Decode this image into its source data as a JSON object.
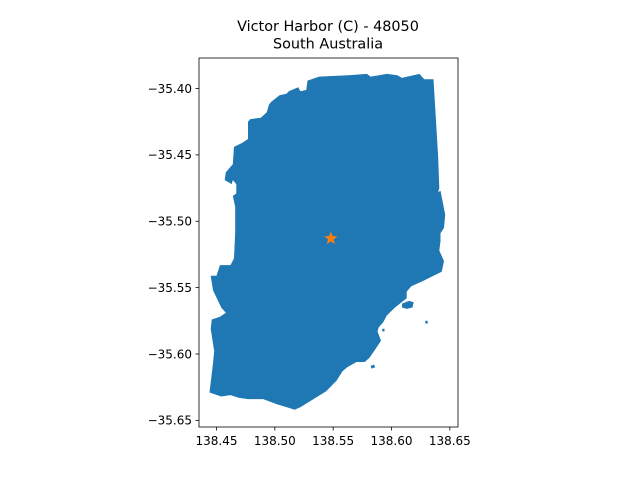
{
  "map": {
    "title_line1": "Victor Harbor (C) - 48050",
    "title_line2": "South Australia",
    "region_color": "#1f77b4",
    "marker_color": "#ff7f0e",
    "marker_symbol": "star",
    "marker": {
      "lon": 138.548,
      "lat": -35.513
    },
    "xlim": [
      138.435,
      138.657
    ],
    "ylim": [
      -35.655,
      -35.377
    ],
    "xticks": [
      {
        "value": 138.45,
        "label": "138.45"
      },
      {
        "value": 138.5,
        "label": "138.50"
      },
      {
        "value": 138.55,
        "label": "138.55"
      },
      {
        "value": 138.6,
        "label": "138.60"
      },
      {
        "value": 138.65,
        "label": "138.65"
      }
    ],
    "yticks": [
      {
        "value": -35.4,
        "label": "−35.40"
      },
      {
        "value": -35.45,
        "label": "−35.45"
      },
      {
        "value": -35.5,
        "label": "−35.50"
      },
      {
        "value": -35.55,
        "label": "−35.55"
      },
      {
        "value": -35.6,
        "label": "−35.60"
      },
      {
        "value": -35.65,
        "label": "−35.65"
      }
    ],
    "boundary": [
      [
        138.538,
        -35.391
      ],
      [
        138.563,
        -35.39
      ],
      [
        138.579,
        -35.389
      ],
      [
        138.582,
        -35.391
      ],
      [
        138.596,
        -35.389
      ],
      [
        138.605,
        -35.39
      ],
      [
        138.609,
        -35.392
      ],
      [
        138.624,
        -35.389
      ],
      [
        138.628,
        -35.393
      ],
      [
        138.636,
        -35.393
      ],
      [
        138.64,
        -35.452
      ],
      [
        138.641,
        -35.475
      ],
      [
        138.64,
        -35.478
      ],
      [
        138.642,
        -35.477
      ],
      [
        138.646,
        -35.495
      ],
      [
        138.645,
        -35.505
      ],
      [
        138.642,
        -35.509
      ],
      [
        138.642,
        -35.515
      ],
      [
        138.641,
        -35.522
      ],
      [
        138.645,
        -35.53
      ],
      [
        138.643,
        -35.538
      ],
      [
        138.636,
        -35.541
      ],
      [
        138.627,
        -35.545
      ],
      [
        138.617,
        -35.549
      ],
      [
        138.613,
        -35.553
      ],
      [
        138.613,
        -35.558
      ],
      [
        138.603,
        -35.565
      ],
      [
        138.596,
        -35.571
      ],
      [
        138.593,
        -35.576
      ],
      [
        138.589,
        -35.58
      ],
      [
        138.588,
        -35.583
      ],
      [
        138.591,
        -35.59
      ],
      [
        138.585,
        -35.598
      ],
      [
        138.581,
        -35.603
      ],
      [
        138.577,
        -35.606
      ],
      [
        138.57,
        -35.606
      ],
      [
        138.562,
        -35.61
      ],
      [
        138.558,
        -35.613
      ],
      [
        138.553,
        -35.62
      ],
      [
        138.544,
        -35.628
      ],
      [
        138.535,
        -35.633
      ],
      [
        138.522,
        -35.64
      ],
      [
        138.517,
        -35.642
      ],
      [
        138.51,
        -35.64
      ],
      [
        138.502,
        -35.638
      ],
      [
        138.496,
        -35.636
      ],
      [
        138.49,
        -35.634
      ],
      [
        138.477,
        -35.634
      ],
      [
        138.469,
        -35.633
      ],
      [
        138.462,
        -35.631
      ],
      [
        138.454,
        -35.632
      ],
      [
        138.444,
        -35.629
      ],
      [
        138.447,
        -35.607
      ],
      [
        138.448,
        -35.598
      ],
      [
        138.445,
        -35.581
      ],
      [
        138.446,
        -35.574
      ],
      [
        138.453,
        -35.572
      ],
      [
        138.458,
        -35.569
      ],
      [
        138.454,
        -35.565
      ],
      [
        138.447,
        -35.552
      ],
      [
        138.445,
        -35.541
      ],
      [
        138.45,
        -35.541
      ],
      [
        138.453,
        -35.533
      ],
      [
        138.462,
        -35.533
      ],
      [
        138.465,
        -35.528
      ],
      [
        138.466,
        -35.508
      ],
      [
        138.466,
        -35.489
      ],
      [
        138.464,
        -35.481
      ],
      [
        138.467,
        -35.479
      ],
      [
        138.467,
        -35.472
      ],
      [
        138.464,
        -35.469
      ],
      [
        138.463,
        -35.472
      ],
      [
        138.457,
        -35.469
      ],
      [
        138.458,
        -35.463
      ],
      [
        138.464,
        -35.457
      ],
      [
        138.465,
        -35.444
      ],
      [
        138.472,
        -35.441
      ],
      [
        138.477,
        -35.438
      ],
      [
        138.477,
        -35.425
      ],
      [
        138.479,
        -35.423
      ],
      [
        138.488,
        -35.422
      ],
      [
        138.493,
        -35.418
      ],
      [
        138.495,
        -35.412
      ],
      [
        138.497,
        -35.41
      ],
      [
        138.504,
        -35.405
      ],
      [
        138.51,
        -35.404
      ],
      [
        138.512,
        -35.402
      ],
      [
        138.52,
        -35.399
      ],
      [
        138.522,
        -35.402
      ],
      [
        138.527,
        -35.401
      ],
      [
        138.528,
        -35.394
      ],
      [
        138.538,
        -35.391
      ]
    ],
    "islands": [
      [
        [
          138.609,
          -35.562
        ],
        [
          138.615,
          -35.56
        ],
        [
          138.619,
          -35.561
        ],
        [
          138.618,
          -35.565
        ],
        [
          138.613,
          -35.566
        ],
        [
          138.609,
          -35.565
        ]
      ],
      [
        [
          138.592,
          -35.581
        ],
        [
          138.594,
          -35.581
        ],
        [
          138.594,
          -35.583
        ],
        [
          138.592,
          -35.583
        ]
      ],
      [
        [
          138.582,
          -35.609
        ],
        [
          138.585,
          -35.608
        ],
        [
          138.586,
          -35.61
        ],
        [
          138.583,
          -35.611
        ]
      ],
      [
        [
          138.629,
          -35.575
        ],
        [
          138.631,
          -35.575
        ],
        [
          138.631,
          -35.577
        ],
        [
          138.629,
          -35.577
        ]
      ]
    ]
  }
}
